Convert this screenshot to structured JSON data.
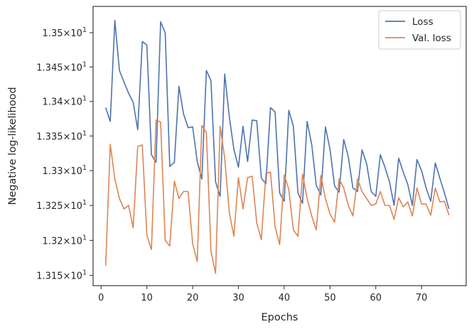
{
  "chart_data": {
    "type": "line",
    "xlabel": "Epochs",
    "ylabel": "Negative log-likelihood",
    "xlim": [
      -1.75,
      79.75
    ],
    "ylim": [
      13.1355,
      13.5385
    ],
    "y_scale": "log",
    "grid": false,
    "legend_position": "top-right",
    "x_ticks": [
      0,
      10,
      20,
      30,
      40,
      50,
      60,
      70
    ],
    "x_tick_labels": [
      "0",
      "10",
      "20",
      "30",
      "40",
      "50",
      "60",
      "70"
    ],
    "y_ticks": [
      13.15,
      13.2,
      13.25,
      13.3,
      13.35,
      13.4,
      13.45,
      13.5
    ],
    "y_tick_labels": [
      {
        "mantissa": "1.315",
        "base": "10",
        "exp": "1"
      },
      {
        "mantissa": "1.32",
        "base": "10",
        "exp": "1"
      },
      {
        "mantissa": "1.325",
        "base": "10",
        "exp": "1"
      },
      {
        "mantissa": "1.33",
        "base": "10",
        "exp": "1"
      },
      {
        "mantissa": "1.335",
        "base": "10",
        "exp": "1"
      },
      {
        "mantissa": "1.34",
        "base": "10",
        "exp": "1"
      },
      {
        "mantissa": "1.345",
        "base": "10",
        "exp": "1"
      },
      {
        "mantissa": "1.35",
        "base": "10",
        "exp": "1"
      }
    ],
    "x": [
      1,
      2,
      3,
      4,
      5,
      6,
      7,
      8,
      9,
      10,
      11,
      12,
      13,
      14,
      15,
      16,
      17,
      18,
      19,
      20,
      21,
      22,
      23,
      24,
      25,
      26,
      27,
      28,
      29,
      30,
      31,
      32,
      33,
      34,
      35,
      36,
      37,
      38,
      39,
      40,
      41,
      42,
      43,
      44,
      45,
      46,
      47,
      48,
      49,
      50,
      51,
      52,
      53,
      54,
      55,
      56,
      57,
      58,
      59,
      60,
      61,
      62,
      63,
      64,
      65,
      66,
      67,
      68,
      69,
      70,
      71,
      72,
      73,
      74,
      75,
      76
    ],
    "series": [
      {
        "name": "Loss",
        "color": "#4c72b0",
        "values": [
          13.391,
          13.371,
          13.518,
          13.445,
          13.428,
          13.412,
          13.399,
          13.359,
          13.487,
          13.482,
          13.323,
          13.312,
          13.516,
          13.5,
          13.306,
          13.312,
          13.422,
          13.382,
          13.362,
          13.363,
          13.313,
          13.288,
          13.445,
          13.43,
          13.284,
          13.263,
          13.44,
          13.378,
          13.331,
          13.305,
          13.364,
          13.313,
          13.373,
          13.372,
          13.289,
          13.281,
          13.391,
          13.385,
          13.268,
          13.256,
          13.387,
          13.364,
          13.268,
          13.253,
          13.371,
          13.338,
          13.279,
          13.265,
          13.363,
          13.331,
          13.278,
          13.269,
          13.345,
          13.32,
          13.275,
          13.27,
          13.33,
          13.31,
          13.27,
          13.263,
          13.323,
          13.305,
          13.284,
          13.25,
          13.318,
          13.298,
          13.28,
          13.25,
          13.316,
          13.3,
          13.275,
          13.256,
          13.311,
          13.289,
          13.268,
          13.245
        ]
      },
      {
        "name": "Val. loss",
        "color": "#dd8452",
        "values": [
          13.164,
          13.338,
          13.288,
          13.26,
          13.245,
          13.25,
          13.218,
          13.335,
          13.337,
          13.207,
          13.187,
          13.373,
          13.37,
          13.2,
          13.192,
          13.285,
          13.26,
          13.27,
          13.27,
          13.195,
          13.17,
          13.365,
          13.355,
          13.185,
          13.153,
          13.364,
          13.318,
          13.24,
          13.206,
          13.29,
          13.245,
          13.29,
          13.292,
          13.225,
          13.201,
          13.296,
          13.298,
          13.22,
          13.194,
          13.294,
          13.273,
          13.215,
          13.206,
          13.295,
          13.26,
          13.235,
          13.215,
          13.293,
          13.26,
          13.238,
          13.226,
          13.288,
          13.275,
          13.25,
          13.235,
          13.288,
          13.27,
          13.26,
          13.25,
          13.252,
          13.27,
          13.25,
          13.25,
          13.23,
          13.261,
          13.248,
          13.255,
          13.235,
          13.275,
          13.252,
          13.252,
          13.236,
          13.275,
          13.255,
          13.256,
          13.236
        ]
      }
    ]
  }
}
